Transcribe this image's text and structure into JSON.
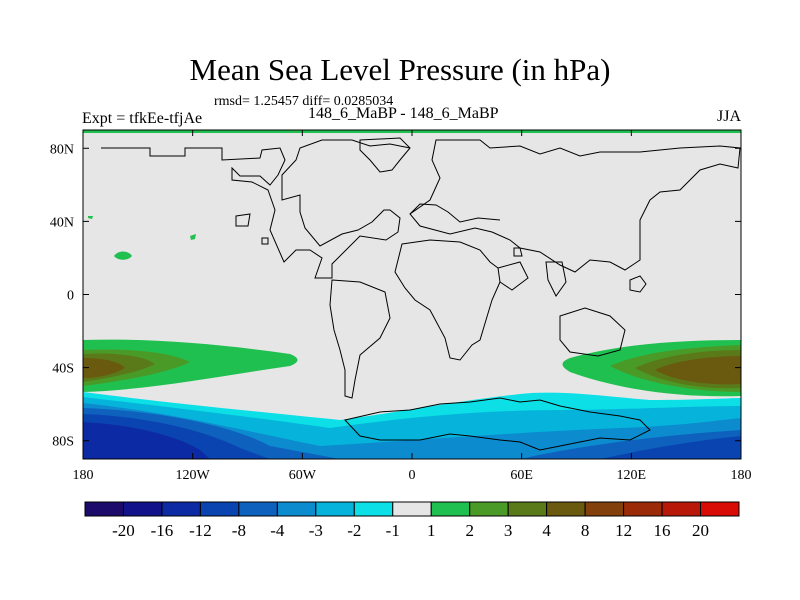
{
  "title": "Mean Sea Level Pressure (in hPa)",
  "stats_text": "rmsd= 1.25457 diff= 0.0285034",
  "left_label": "Expt = tfkEe-tfjAe",
  "center_label": "148_6_MaBP - 148_6_MaBP",
  "right_label": "JJA",
  "map": {
    "lon_range": [
      -180,
      180
    ],
    "lat_range": [
      -90,
      90
    ],
    "lat_ticks": [
      {
        "value": 80,
        "label": "80N"
      },
      {
        "value": 40,
        "label": "40N"
      },
      {
        "value": 0,
        "label": "0"
      },
      {
        "value": -40,
        "label": "40S"
      },
      {
        "value": -80,
        "label": "80S"
      }
    ],
    "lon_ticks": [
      {
        "value": -180,
        "label": "180"
      },
      {
        "value": -120,
        "label": "120W"
      },
      {
        "value": -60,
        "label": "60W"
      },
      {
        "value": 0,
        "label": "0"
      },
      {
        "value": 60,
        "label": "60E"
      },
      {
        "value": 120,
        "label": "120E"
      },
      {
        "value": 180,
        "label": "180"
      }
    ]
  },
  "colorbar": {
    "labels": [
      "-20",
      "-16",
      "-12",
      "-8",
      "-4",
      "-3",
      "-2",
      "-1",
      "1",
      "2",
      "3",
      "4",
      "8",
      "12",
      "16",
      "20"
    ],
    "colors": [
      "#1c0b6b",
      "#12128a",
      "#0c2aa4",
      "#0a44b0",
      "#0e62be",
      "#0c8ccf",
      "#06b4db",
      "#0ce0e6",
      "#e6e6e6",
      "#20c050",
      "#4a9a28",
      "#5a7a1a",
      "#6a5a10",
      "#82400c",
      "#9a2a08",
      "#b81808",
      "#d80c04"
    ]
  }
}
